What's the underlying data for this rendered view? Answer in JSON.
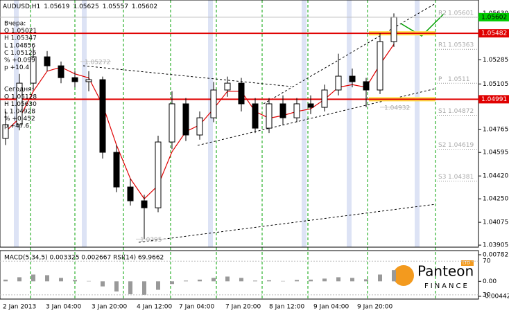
{
  "chart_data": {
    "type": "candlestick",
    "symbol": "AUDUSD,H1",
    "header_ohlc": [
      1.05619,
      1.05625,
      1.05557,
      1.05602
    ],
    "info": [
      "Вчера:",
      "O 1.05021",
      "H 1.05347",
      "L 1.04856",
      "C 1.05126",
      "% +0.099",
      "p +10.4",
      "Сегодня:",
      "O 1.05128",
      "H 1.05630",
      "L 1.04928",
      "% +0.452",
      "p +47.6"
    ],
    "categories": [
      "2 Jan 2013",
      "3 Jan 04:00",
      "3 Jan 20:00",
      "4 Jan 12:00",
      "7 Jan 04:00",
      "7 Jan 20:00",
      "8 Jan 12:00",
      "9 Jan 04:00",
      "9 Jan 20:00"
    ],
    "open": [
      1.047,
      1.04802,
      1.05111,
      1.05307,
      1.0524,
      1.05152,
      1.05122,
      1.05137,
      1.04596,
      1.04338,
      1.04235,
      1.04183,
      1.04673,
      1.04957,
      1.04725,
      1.04853,
      1.0506,
      1.05111,
      1.04957,
      1.04776,
      1.04957,
      1.04853,
      1.04957,
      1.04931,
      1.0506,
      1.05163,
      1.05122,
      1.0506,
      1.0542
    ],
    "high": [
      1.049,
      1.0518,
      1.0538,
      1.0535,
      1.05272,
      1.052,
      1.052,
      1.0516,
      1.0465,
      1.044,
      1.0428,
      1.0472,
      1.0505,
      1.05,
      1.049,
      1.0512,
      1.0516,
      1.0515,
      1.05,
      1.05,
      1.0502,
      1.05,
      1.0502,
      1.051,
      1.0533,
      1.0522,
      1.0515,
      1.05482,
      1.0563
    ],
    "low": [
      1.0465,
      1.0476,
      1.0506,
      1.052,
      1.0511,
      1.0508,
      1.0505,
      1.0455,
      1.043,
      1.042,
      1.0395,
      1.0415,
      1.0462,
      1.0468,
      1.0469,
      1.0482,
      1.0501,
      1.049,
      1.0474,
      1.0474,
      1.048,
      1.0482,
      1.0488,
      1.049,
      1.0502,
      1.0508,
      1.04932,
      1.0503,
      1.0538
    ],
    "close": [
      1.04802,
      1.05111,
      1.05307,
      1.0524,
      1.05152,
      1.05122,
      1.05137,
      1.04596,
      1.04338,
      1.04235,
      1.04183,
      1.04673,
      1.04957,
      1.04725,
      1.04853,
      1.0506,
      1.05111,
      1.04957,
      1.04776,
      1.04957,
      1.04853,
      1.04957,
      1.04931,
      1.0506,
      1.05163,
      1.05122,
      1.0506,
      1.0542,
      1.05602
    ],
    "moving_average": {
      "color": "#e00000",
      "values": [
        1.0475,
        1.0485,
        1.0505,
        1.052,
        1.0523,
        1.0518,
        1.0515,
        1.0495,
        1.0465,
        1.044,
        1.0425,
        1.0435,
        1.046,
        1.0475,
        1.048,
        1.0492,
        1.0505,
        1.0505,
        1.049,
        1.0485,
        1.0487,
        1.049,
        1.0492,
        1.0499,
        1.0508,
        1.051,
        1.0508,
        1.0525,
        1.054
      ]
    },
    "ylim": [
      1.0389,
      1.0573
    ],
    "yticks": [
      {
        "value": 1.0563,
        "label": "1.05630"
      },
      1.05285,
      1.05105,
      1.04765,
      1.04595,
      {
        "value": 1.0442,
        "label": "1.04420"
      },
      {
        "value": 1.0425,
        "label": "1.04250"
      },
      1.04075,
      1.03905
    ],
    "current_price": {
      "value": 1.05602,
      "color": "#00cc00"
    },
    "levels": {
      "color": "#e00000",
      "values": [
        1.05482,
        1.04991
      ]
    },
    "pivots": [
      {
        "name": "R2",
        "value": 1.05601
      },
      {
        "name": "R1",
        "value": 1.05363
      },
      {
        "name": "P",
        "value": 1.0511
      },
      {
        "name": "S1",
        "value": 1.04872
      },
      {
        "name": "S2",
        "value": 1.04619
      },
      {
        "name": "S3",
        "value": 1.04381
      }
    ],
    "annotations": [
      1.05272,
      1.04932,
      1.0395
    ],
    "indicator": {
      "title": "MACD(5,34,5) 0.003325 0.002667 RSI(14) 69.9662",
      "values": [
        0.0005,
        0.0012,
        0.002,
        0.0018,
        0.001,
        0.0004,
        0.0001,
        -0.0015,
        -0.003,
        -0.0038,
        -0.004,
        -0.0025,
        -0.0008,
        0.0002,
        0.0005,
        0.001,
        0.0014,
        0.001,
        0.0002,
        0.0003,
        0.0001,
        0.0004,
        0.0005,
        0.0008,
        0.0012,
        0.001,
        0.0006,
        0.002,
        0.0033
      ],
      "ylim": [
        -0.00442,
        0.00782
      ],
      "yticks": [
        0.00782,
        {
          "value": 0,
          "label": "0.00"
        },
        -0.00442
      ],
      "rsi_ylim": [
        25,
        82.5
      ],
      "rsi_ticks": [
        70,
        30
      ]
    },
    "logo": {
      "name": "Panteon",
      "sub": "FINANCE",
      "badge": "LTD"
    }
  }
}
